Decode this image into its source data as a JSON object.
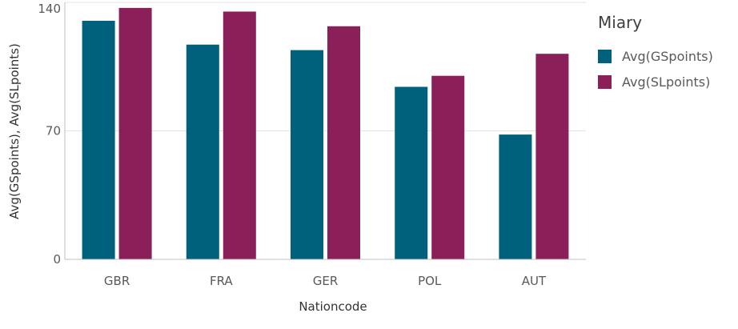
{
  "chart_data": {
    "type": "bar",
    "categories": [
      "GBR",
      "FRA",
      "GER",
      "POL",
      "AUT"
    ],
    "series": [
      {
        "name": "Avg(GSpoints)",
        "values": [
          130,
          117,
          114,
          94,
          68
        ],
        "color": "#00617c"
      },
      {
        "name": "Avg(SLpoints)",
        "values": [
          137,
          135,
          127,
          100,
          112
        ],
        "color": "#8b1f5a"
      }
    ],
    "xlabel": "Nationcode",
    "ylabel": "Avg(GSpoints), Avg(SLpoints)",
    "ylim": [
      0,
      140
    ],
    "yticks": [
      0,
      70,
      140
    ],
    "grid": true,
    "legend": {
      "title": "Miary",
      "position": "right"
    }
  }
}
